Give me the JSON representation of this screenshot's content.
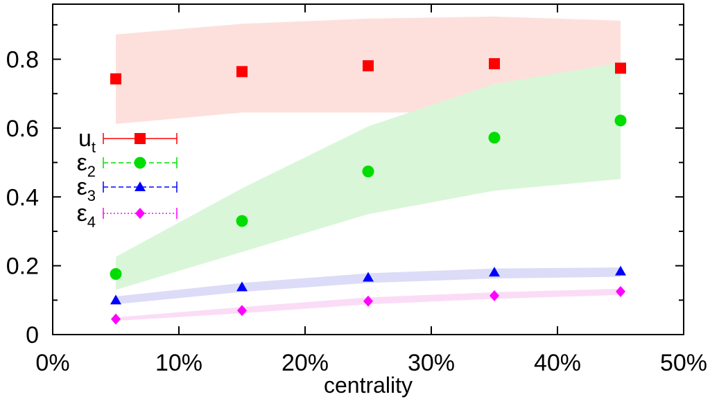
{
  "chart_data": {
    "type": "scatter",
    "title": "",
    "xlabel": "centrality",
    "ylabel": "",
    "xlim": [
      0,
      50
    ],
    "ylim": [
      0,
      0.96
    ],
    "x_ticks": [
      0,
      10,
      20,
      30,
      40,
      50
    ],
    "x_tick_labels": [
      "0%",
      "10%",
      "20%",
      "30%",
      "40%",
      "50%"
    ],
    "y_ticks": [
      0,
      0.2,
      0.4,
      0.6,
      0.8
    ],
    "y_tick_labels": [
      "0",
      "0.2",
      "0.4",
      "0.6",
      "0.8"
    ],
    "grid": false,
    "legend_position": "left",
    "x": [
      5,
      15,
      25,
      35,
      45
    ],
    "series": [
      {
        "name": "u",
        "sub": "t",
        "values": [
          0.743,
          0.764,
          0.781,
          0.787,
          0.774
        ],
        "band_low": [
          0.612,
          0.645,
          0.645,
          0.646,
          0.648
        ],
        "band_high": [
          0.872,
          0.903,
          0.918,
          0.924,
          0.912
        ],
        "color": "#ff0000",
        "band_color": "#fde0dc",
        "marker": "square",
        "line_style": "solid"
      },
      {
        "name": "ε",
        "sub": "2",
        "values": [
          0.176,
          0.33,
          0.474,
          0.572,
          0.622
        ],
        "band_low": [
          0.13,
          0.24,
          0.35,
          0.418,
          0.452
        ],
        "band_high": [
          0.226,
          0.425,
          0.605,
          0.728,
          0.79
        ],
        "color": "#00dd00",
        "band_color": "#d9f6d9",
        "marker": "circle",
        "line_style": "dashed"
      },
      {
        "name": "ε",
        "sub": "3",
        "values": [
          0.1,
          0.138,
          0.166,
          0.181,
          0.184
        ],
        "band_low": [
          0.088,
          0.124,
          0.15,
          0.163,
          0.168
        ],
        "band_high": [
          0.111,
          0.15,
          0.178,
          0.192,
          0.195
        ],
        "color": "#0000ff",
        "band_color": "#dcdcf8",
        "marker": "triangle",
        "line_style": "dashed"
      },
      {
        "name": "ε",
        "sub": "4",
        "values": [
          0.045,
          0.07,
          0.097,
          0.113,
          0.125
        ],
        "band_low": [
          0.04,
          0.062,
          0.088,
          0.104,
          0.115
        ],
        "band_high": [
          0.05,
          0.08,
          0.108,
          0.123,
          0.133
        ],
        "color": "#ff00ff",
        "band_color": "#fbdcf6",
        "marker": "diamond",
        "line_style": "dotted"
      }
    ]
  }
}
